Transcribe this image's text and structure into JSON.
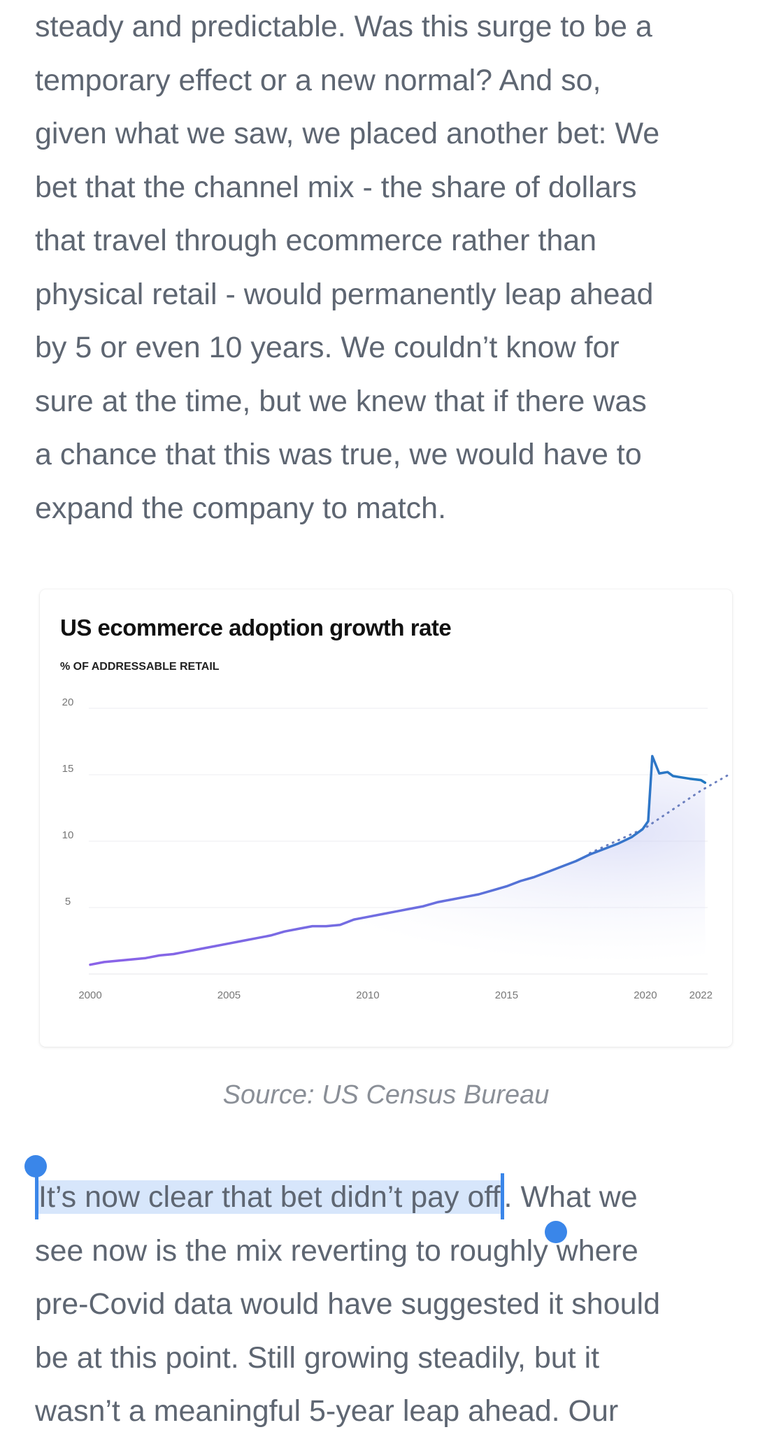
{
  "article": {
    "paragraph_top": [
      "steady and predictable. Was this surge to be a",
      "temporary effect or a new normal? And so,",
      "given what we saw, we placed another bet: We",
      "bet that the channel mix - the share of dollars",
      "that travel through ecommerce rather than",
      "physical retail - would permanently leap ahead",
      "by 5 or even 10 years. We couldn’t know for",
      "sure at the time, but we knew that if there was",
      "a chance that this was true, we would have to",
      "expand the company to match."
    ],
    "caption": "Source: US Census Bureau",
    "paragraph_bottom": {
      "selected_text": "It’s now clear that bet didn’t pay off",
      "line1_rest": ". What we",
      "lines": [
        "see now is the mix reverting to roughly where",
        "pre-Covid data would have suggested it should",
        "be at this point. Still growing steadily, but it",
        "wasn’t a meaningful 5-year leap ahead. Our"
      ]
    }
  },
  "chart_data": {
    "type": "line",
    "title": "US ecommerce adoption growth rate",
    "subtitle": "% OF ADDRESSABLE RETAIL",
    "xlabel": "",
    "ylabel": "",
    "x_ticks": [
      "2000",
      "2005",
      "2010",
      "2015",
      "2020",
      "2022"
    ],
    "y_ticks": [
      "5",
      "10",
      "15",
      "20"
    ],
    "xlim": [
      2000,
      2023
    ],
    "ylim": [
      0,
      20
    ],
    "grid": true,
    "series": [
      {
        "role": "actual",
        "line_colors": [
          "#8b63e8",
          "#1f78c1"
        ],
        "points": [
          [
            2000.0,
            0.7
          ],
          [
            2000.5,
            0.9
          ],
          [
            2001.0,
            1.0
          ],
          [
            2001.5,
            1.1
          ],
          [
            2002.0,
            1.2
          ],
          [
            2002.5,
            1.4
          ],
          [
            2003.0,
            1.5
          ],
          [
            2003.5,
            1.7
          ],
          [
            2004.0,
            1.9
          ],
          [
            2004.5,
            2.1
          ],
          [
            2005.0,
            2.3
          ],
          [
            2005.5,
            2.5
          ],
          [
            2006.0,
            2.7
          ],
          [
            2006.5,
            2.9
          ],
          [
            2007.0,
            3.2
          ],
          [
            2007.5,
            3.4
          ],
          [
            2008.0,
            3.6
          ],
          [
            2008.5,
            3.6
          ],
          [
            2009.0,
            3.7
          ],
          [
            2009.5,
            4.1
          ],
          [
            2010.0,
            4.3
          ],
          [
            2010.5,
            4.5
          ],
          [
            2011.0,
            4.7
          ],
          [
            2011.5,
            4.9
          ],
          [
            2012.0,
            5.1
          ],
          [
            2012.5,
            5.4
          ],
          [
            2013.0,
            5.6
          ],
          [
            2013.5,
            5.8
          ],
          [
            2014.0,
            6.0
          ],
          [
            2014.5,
            6.3
          ],
          [
            2015.0,
            6.6
          ],
          [
            2015.5,
            7.0
          ],
          [
            2016.0,
            7.3
          ],
          [
            2016.5,
            7.7
          ],
          [
            2017.0,
            8.1
          ],
          [
            2017.5,
            8.5
          ],
          [
            2018.0,
            9.0
          ],
          [
            2018.5,
            9.4
          ],
          [
            2019.0,
            9.8
          ],
          [
            2019.5,
            10.3
          ],
          [
            2019.9,
            10.9
          ],
          [
            2020.1,
            11.5
          ],
          [
            2020.25,
            16.4
          ],
          [
            2020.5,
            15.1
          ],
          [
            2020.8,
            15.2
          ],
          [
            2021.0,
            14.9
          ],
          [
            2021.3,
            14.8
          ],
          [
            2021.6,
            14.7
          ],
          [
            2022.0,
            14.6
          ],
          [
            2022.15,
            14.4
          ]
        ]
      },
      {
        "role": "pre-covid trend",
        "line_color": "#6b7fbf",
        "dotted": true,
        "points": [
          [
            2018.0,
            9.1
          ],
          [
            2020.0,
            11.0
          ],
          [
            2022.0,
            13.8
          ],
          [
            2023.0,
            15.0
          ]
        ]
      }
    ]
  }
}
